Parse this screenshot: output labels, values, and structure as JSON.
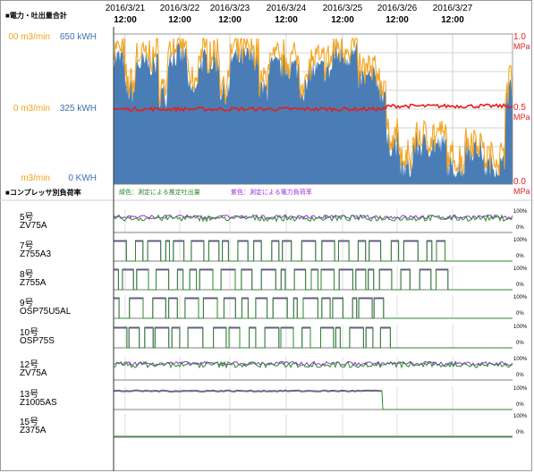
{
  "top_section_title": "■電力・吐出量合計",
  "bottom_section_title": "■コンプレッサ別負荷率",
  "legend_note_green": "緑色：測定による推定吐出量",
  "legend_note_purple": "紫色：測定による電力負荷率",
  "dates": [
    {
      "date": "2016/3/21",
      "time": "12:00"
    },
    {
      "date": "2016/3/22",
      "time": "12:00"
    },
    {
      "date": "2016/3/23",
      "time": "12:00"
    },
    {
      "date": "2016/3/24",
      "time": "12:00"
    },
    {
      "date": "2016/3/25",
      "time": "12:00"
    },
    {
      "date": "2016/3/26",
      "time": "12:00"
    },
    {
      "date": "2016/3/27",
      "time": "12:00"
    }
  ],
  "left_axis": {
    "flow_ticks": [
      "00 m3/min",
      "0 m3/min",
      "m3/min"
    ],
    "power_ticks": [
      "650 kWH",
      "325 kWH",
      "0 KWH"
    ]
  },
  "right_axis": {
    "pressure_ticks": [
      "1.0",
      "0.5",
      "0.0"
    ],
    "unit": "MPa"
  },
  "compressors": [
    {
      "no": "5号",
      "model": "ZV75A"
    },
    {
      "no": "7号",
      "model": "Z755A3"
    },
    {
      "no": "8号",
      "model": "Z755A"
    },
    {
      "no": "9号",
      "model": "OSP75U5AL"
    },
    {
      "no": "10号",
      "model": "OSP75S"
    },
    {
      "no": "12号",
      "model": "ZV75A"
    },
    {
      "no": "13号",
      "model": "Z1005AS"
    },
    {
      "no": "15号",
      "model": "Z375A"
    }
  ],
  "load_tick_top": "100%",
  "load_tick_bottom": "0%",
  "colors": {
    "power_fill": "#4a7db5",
    "flow_line": "#f4a41c",
    "pressure_line": "#e81c1c",
    "flow_est": "#2b8a2b",
    "power_load": "#9b30d9",
    "flow_label": "#f4a41c",
    "power_label": "#3d6fb0",
    "pressure_label": "#e81c1c"
  },
  "chart_data": [
    {
      "type": "area",
      "x": [
        "2016/3/21",
        "2016/3/22",
        "2016/3/23",
        "2016/3/24",
        "2016/3/25",
        "2016/3/26",
        "2016/3/27"
      ],
      "series": [
        {
          "name": "電力",
          "axis": "kWH",
          "values": [
            520,
            480,
            470,
            470,
            480,
            240,
            220
          ]
        },
        {
          "name": "吐出量",
          "axis": "m3/min",
          "values": [
            560,
            500,
            490,
            490,
            500,
            210,
            200
          ]
        },
        {
          "name": "圧力",
          "axis": "MPa",
          "values": [
            0.5,
            0.5,
            0.5,
            0.5,
            0.5,
            0.52,
            0.52
          ]
        }
      ],
      "ylim_kwh": [
        0,
        650
      ],
      "ylim_mpa": [
        0.0,
        1.0
      ],
      "grid": true
    },
    {
      "type": "line",
      "categories": [
        "5号",
        "7号",
        "8号",
        "9号",
        "10号",
        "12号",
        "13号",
        "15号"
      ],
      "series": [
        {
          "name": "5号",
          "pattern": "continuous",
          "level": 0.7
        },
        {
          "name": "7号",
          "pattern": "onoff",
          "level": 0.95
        },
        {
          "name": "8号",
          "pattern": "onoff",
          "level": 0.95
        },
        {
          "name": "9号",
          "pattern": "onoff",
          "level": 0.95
        },
        {
          "name": "10号",
          "pattern": "onoff",
          "level": 0.95
        },
        {
          "name": "12号",
          "pattern": "continuous",
          "level": 0.75
        },
        {
          "name": "13号",
          "pattern": "flat",
          "level": 0.88
        },
        {
          "name": "15号",
          "pattern": "off",
          "level": 0.0
        }
      ],
      "ylim": [
        0,
        100
      ]
    }
  ]
}
